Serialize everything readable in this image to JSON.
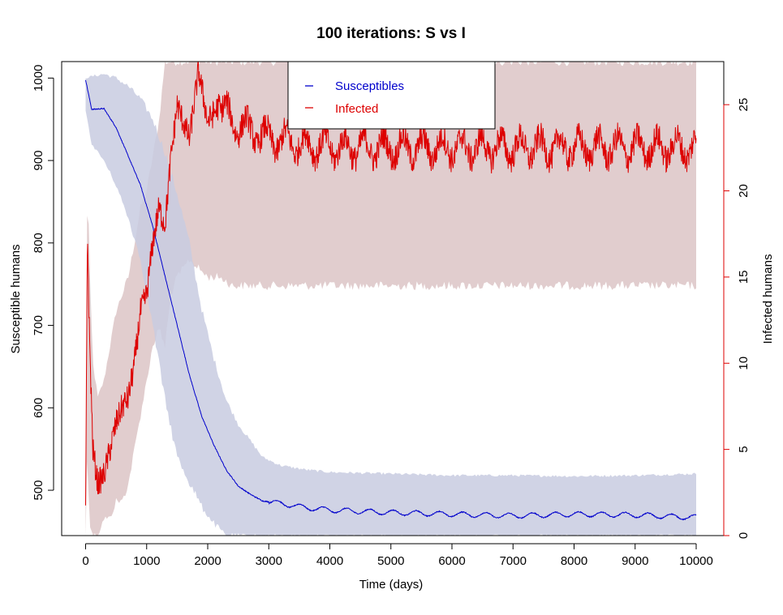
{
  "chart_data": {
    "type": "line",
    "title": "100  iterations: S vs I",
    "xlabel": "Time (days)",
    "ylabel_left": "Susceptible humans",
    "ylabel_right": "Infected humans",
    "x_range": [
      0,
      10000
    ],
    "y_left_range": [
      445,
      1020
    ],
    "y_right_range": [
      0,
      27.5
    ],
    "x_ticks": [
      "0",
      "1000",
      "2000",
      "3000",
      "4000",
      "5000",
      "6000",
      "7000",
      "8000",
      "9000",
      "10000"
    ],
    "y_left_ticks": [
      "500",
      "600",
      "700",
      "800",
      "900",
      "1000"
    ],
    "y_right_ticks": [
      "0",
      "5",
      "10",
      "15",
      "20",
      "25"
    ],
    "grid": false,
    "legend_position": "top-center",
    "colors": {
      "susceptible": "#0000cc",
      "infected": "#dd0000",
      "susceptible_band": "#c8cbe0",
      "infected_band": "#dcc4c6",
      "band_overlap": "#b8a8bf"
    },
    "series": [
      {
        "name": "Susceptibles",
        "axis": "left",
        "x": [
          0,
          100,
          300,
          500,
          700,
          900,
          1100,
          1300,
          1500,
          1700,
          1900,
          2100,
          2300,
          2500,
          2700,
          2900,
          3200,
          3600,
          4000,
          5000,
          6000,
          7000,
          8000,
          9000,
          10000
        ],
        "values": [
          998,
          962,
          963,
          940,
          905,
          870,
          820,
          760,
          700,
          640,
          590,
          555,
          525,
          505,
          495,
          487,
          484,
          479,
          476,
          473,
          471,
          469,
          471,
          470,
          467
        ],
        "band_low": [
          960,
          920,
          900,
          870,
          830,
          780,
          700,
          610,
          540,
          510,
          480,
          460,
          445,
          445,
          445,
          445,
          445,
          445,
          445,
          445,
          445,
          445,
          445,
          445,
          445
        ],
        "band_high": [
          1000,
          1002,
          1005,
          1000,
          990,
          975,
          950,
          910,
          860,
          800,
          720,
          660,
          610,
          580,
          560,
          540,
          530,
          525,
          522,
          520,
          518,
          518,
          517,
          518,
          520
        ]
      },
      {
        "name": "Infected",
        "axis": "right",
        "x": [
          0,
          30,
          60,
          120,
          200,
          300,
          400,
          500,
          600,
          700,
          800,
          900,
          1000,
          1100,
          1200,
          1300,
          1400,
          1500,
          1700,
          1850,
          2000,
          2200,
          2400,
          2700,
          3000,
          4000,
          5000,
          6000,
          7000,
          8000,
          9000,
          10000
        ],
        "values": [
          1,
          18,
          12,
          5,
          3,
          3.5,
          5,
          6.5,
          7.5,
          8,
          10,
          13,
          14,
          17,
          19,
          18,
          22,
          25,
          23,
          27,
          24,
          25,
          24,
          23.5,
          23,
          22.5,
          22.5,
          22.5,
          22.5,
          22.5,
          22.5,
          22.5
        ],
        "band_low": [
          0,
          5,
          1,
          0,
          0,
          1,
          1,
          2,
          2,
          3,
          5,
          7,
          9,
          11,
          12,
          11,
          14,
          15,
          16,
          15.5,
          15,
          15,
          14.5,
          14.5,
          14.5,
          14.5,
          14.5,
          14.5,
          14.5,
          14.5,
          14.5,
          14.5
        ],
        "band_high": [
          2,
          22,
          16,
          10,
          8,
          9,
          11,
          13,
          14,
          15,
          17,
          19,
          20,
          22,
          24,
          27.5,
          27.5,
          27.5,
          27.5,
          27.5,
          27.5,
          27.5,
          27.5,
          27.5,
          27.5,
          27.5,
          27.5,
          27.5,
          27.5,
          27.5,
          27.5,
          27.5
        ]
      }
    ]
  }
}
